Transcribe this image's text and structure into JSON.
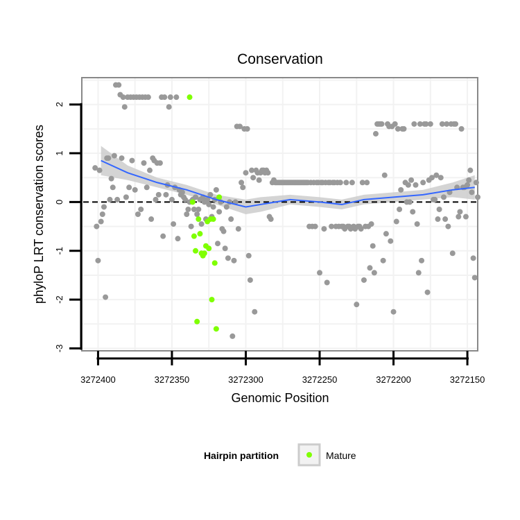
{
  "chart_data": {
    "type": "scatter",
    "title": "Conservation",
    "xlabel": "Genomic Position",
    "ylabel": "phyloP LRT conservation scores",
    "xlim": [
      3272411,
      3272143
    ],
    "ylim": [
      -3.05,
      2.55
    ],
    "x_ticks": [
      3272400,
      3272350,
      3272300,
      3272250,
      3272200,
      3272150
    ],
    "x_tick_labels": [
      "3272400",
      "3272350",
      "3272300",
      "3272250",
      "3272200",
      "3272150"
    ],
    "y_ticks": [
      2,
      1,
      0,
      -1,
      -2,
      -3
    ],
    "y_tick_labels": [
      "2",
      "1",
      "0",
      "-1",
      "-2",
      "-3"
    ],
    "grid": true,
    "reference_line": {
      "y": 0,
      "style": "dashed",
      "color": "#000000"
    },
    "colors": {
      "other_points": "#999999",
      "mature_points": "#7fff00",
      "smooth_line": "#3366ff",
      "ribbon": "#cccccc",
      "panel_border": "#888888",
      "grid": "#f2f2f2"
    },
    "legend": {
      "title": "Hairpin partition",
      "entries": [
        "Mature"
      ],
      "placement": "bottom"
    },
    "series": [
      {
        "name": "Other",
        "points": [
          [
            3272402,
            0.7
          ],
          [
            3272401,
            -0.5
          ],
          [
            3272400,
            -1.2
          ],
          [
            3272399,
            0.65
          ],
          [
            3272398,
            -0.4
          ],
          [
            3272397,
            -0.25
          ],
          [
            3272396,
            -0.1
          ],
          [
            3272395,
            -1.95
          ],
          [
            3272394,
            0.9
          ],
          [
            3272393,
            0.9
          ],
          [
            3272392,
            0.05
          ],
          [
            3272391,
            0.48
          ],
          [
            3272390,
            0.3
          ],
          [
            3272389,
            0.95
          ],
          [
            3272388,
            2.4
          ],
          [
            3272387,
            0.05
          ],
          [
            3272386,
            2.4
          ],
          [
            3272385,
            2.2
          ],
          [
            3272384,
            0.9
          ],
          [
            3272383,
            2.15
          ],
          [
            3272382,
            1.95
          ],
          [
            3272381,
            0.1
          ],
          [
            3272380,
            2.15
          ],
          [
            3272379,
            0.3
          ],
          [
            3272378,
            2.15
          ],
          [
            3272377,
            0.85
          ],
          [
            3272376,
            2.15
          ],
          [
            3272375,
            0.25
          ],
          [
            3272374,
            2.15
          ],
          [
            3272373,
            -0.25
          ],
          [
            3272372,
            2.15
          ],
          [
            3272371,
            -0.15
          ],
          [
            3272370,
            2.15
          ],
          [
            3272369,
            0.8
          ],
          [
            3272368,
            2.15
          ],
          [
            3272367,
            0.3
          ],
          [
            3272366,
            2.15
          ],
          [
            3272365,
            0.65
          ],
          [
            3272364,
            -0.35
          ],
          [
            3272363,
            0.9
          ],
          [
            3272362,
            0.85
          ],
          [
            3272361,
            0.05
          ],
          [
            3272360,
            0.8
          ],
          [
            3272359,
            0.15
          ],
          [
            3272358,
            0.8
          ],
          [
            3272357,
            2.15
          ],
          [
            3272356,
            -0.7
          ],
          [
            3272355,
            2.15
          ],
          [
            3272354,
            0.15
          ],
          [
            3272353,
            0.35
          ],
          [
            3272352,
            1.95
          ],
          [
            3272351,
            2.15
          ],
          [
            3272350,
            0.05
          ],
          [
            3272349,
            -0.45
          ],
          [
            3272348,
            0.3
          ],
          [
            3272347,
            2.15
          ],
          [
            3272346,
            -0.75
          ],
          [
            3272345,
            0.25
          ],
          [
            3272344,
            0.15
          ],
          [
            3272343,
            0.2
          ],
          [
            3272342,
            0.1
          ],
          [
            3272341,
            0.05
          ],
          [
            3272340,
            -0.25
          ],
          [
            3272339,
            -0.15
          ],
          [
            3272338,
            0.0
          ],
          [
            3272337,
            -0.5
          ],
          [
            3272336,
            0.05
          ],
          [
            3272335,
            -0.15
          ],
          [
            3272334,
            0.1
          ],
          [
            3272333,
            -0.25
          ],
          [
            3272332,
            -0.15
          ],
          [
            3272331,
            0.05
          ],
          [
            3272330,
            -0.45
          ],
          [
            3272329,
            0.1
          ],
          [
            3272328,
            0.0
          ],
          [
            3272327,
            -0.35
          ],
          [
            3272326,
            0.05
          ],
          [
            3272325,
            -0.05
          ],
          [
            3272324,
            0.15
          ],
          [
            3272323,
            -0.3
          ],
          [
            3272322,
            -0.1
          ],
          [
            3272321,
            0.05
          ],
          [
            3272320,
            0.25
          ],
          [
            3272319,
            -0.85
          ],
          [
            3272318,
            -0.2
          ],
          [
            3272317,
            0.0
          ],
          [
            3272316,
            -0.55
          ],
          [
            3272315,
            -0.6
          ],
          [
            3272314,
            -0.95
          ],
          [
            3272313,
            -0.1
          ],
          [
            3272312,
            -1.15
          ],
          [
            3272311,
            0.0
          ],
          [
            3272310,
            -0.35
          ],
          [
            3272309,
            -2.75
          ],
          [
            3272308,
            -1.2
          ],
          [
            3272307,
            0.0
          ],
          [
            3272306,
            1.55
          ],
          [
            3272305,
            -0.55
          ],
          [
            3272304,
            1.55
          ],
          [
            3272303,
            0.4
          ],
          [
            3272302,
            0.3
          ],
          [
            3272301,
            1.5
          ],
          [
            3272300,
            0.6
          ],
          [
            3272299,
            1.5
          ],
          [
            3272298,
            -1.1
          ],
          [
            3272297,
            -1.6
          ],
          [
            3272296,
            0.65
          ],
          [
            3272295,
            0.5
          ],
          [
            3272294,
            -2.25
          ],
          [
            3272293,
            0.65
          ],
          [
            3272292,
            0.6
          ],
          [
            3272291,
            0.45
          ],
          [
            3272290,
            0.6
          ],
          [
            3272289,
            0.65
          ],
          [
            3272288,
            0.65
          ],
          [
            3272287,
            0.6
          ],
          [
            3272286,
            0.65
          ],
          [
            3272285,
            0.6
          ],
          [
            3272284,
            -0.3
          ],
          [
            3272283,
            -0.35
          ],
          [
            3272282,
            0.4
          ],
          [
            3272281,
            0.45
          ],
          [
            3272280,
            0.4
          ],
          [
            3272279,
            0.4
          ],
          [
            3272278,
            0.4
          ],
          [
            3272277,
            0.4
          ],
          [
            3272276,
            0.4
          ],
          [
            3272275,
            0.4
          ],
          [
            3272274,
            0.4
          ],
          [
            3272273,
            0.4
          ],
          [
            3272272,
            0.4
          ],
          [
            3272271,
            0.4
          ],
          [
            3272270,
            0.4
          ],
          [
            3272269,
            0.4
          ],
          [
            3272268,
            0.4
          ],
          [
            3272267,
            0.4
          ],
          [
            3272266,
            0.4
          ],
          [
            3272265,
            0.4
          ],
          [
            3272264,
            0.4
          ],
          [
            3272263,
            0.4
          ],
          [
            3272262,
            0.4
          ],
          [
            3272261,
            0.4
          ],
          [
            3272260,
            0.4
          ],
          [
            3272259,
            0.4
          ],
          [
            3272258,
            0.4
          ],
          [
            3272257,
            -0.5
          ],
          [
            3272256,
            0.4
          ],
          [
            3272255,
            -0.5
          ],
          [
            3272254,
            0.4
          ],
          [
            3272253,
            -0.5
          ],
          [
            3272252,
            0.4
          ],
          [
            3272251,
            0.4
          ],
          [
            3272250,
            -1.45
          ],
          [
            3272249,
            0.4
          ],
          [
            3272248,
            0.4
          ],
          [
            3272247,
            -0.55
          ],
          [
            3272246,
            0.4
          ],
          [
            3272245,
            -1.65
          ],
          [
            3272244,
            0.4
          ],
          [
            3272243,
            0.4
          ],
          [
            3272242,
            -0.5
          ],
          [
            3272241,
            0.4
          ],
          [
            3272240,
            0.4
          ],
          [
            3272239,
            -0.5
          ],
          [
            3272238,
            0.4
          ],
          [
            3272237,
            -0.5
          ],
          [
            3272236,
            0.4
          ],
          [
            3272235,
            -0.5
          ],
          [
            3272234,
            -0.5
          ],
          [
            3272233,
            -0.55
          ],
          [
            3272232,
            0.4
          ],
          [
            3272231,
            -0.5
          ],
          [
            3272230,
            -0.5
          ],
          [
            3272229,
            -0.55
          ],
          [
            3272228,
            0.4
          ],
          [
            3272227,
            -0.5
          ],
          [
            3272226,
            -0.55
          ],
          [
            3272225,
            -2.1
          ],
          [
            3272224,
            -0.5
          ],
          [
            3272223,
            -0.5
          ],
          [
            3272222,
            -0.55
          ],
          [
            3272221,
            0.4
          ],
          [
            3272220,
            -1.6
          ],
          [
            3272219,
            -0.5
          ],
          [
            3272218,
            0.4
          ],
          [
            3272217,
            -0.5
          ],
          [
            3272216,
            -1.35
          ],
          [
            3272215,
            -0.45
          ],
          [
            3272214,
            -0.9
          ],
          [
            3272213,
            -1.45
          ],
          [
            3272212,
            1.4
          ],
          [
            3272211,
            1.6
          ],
          [
            3272210,
            1.6
          ],
          [
            3272209,
            1.6
          ],
          [
            3272208,
            1.6
          ],
          [
            3272207,
            -1.2
          ],
          [
            3272206,
            0.55
          ],
          [
            3272205,
            -0.65
          ],
          [
            3272204,
            1.6
          ],
          [
            3272203,
            1.55
          ],
          [
            3272202,
            -0.8
          ],
          [
            3272201,
            1.55
          ],
          [
            3272200,
            -2.25
          ],
          [
            3272199,
            1.6
          ],
          [
            3272198,
            -0.4
          ],
          [
            3272197,
            1.5
          ],
          [
            3272196,
            -0.15
          ],
          [
            3272195,
            0.25
          ],
          [
            3272194,
            1.5
          ],
          [
            3272193,
            1.5
          ],
          [
            3272192,
            0.4
          ],
          [
            3272191,
            0.0
          ],
          [
            3272190,
            0.35
          ],
          [
            3272189,
            0.0
          ],
          [
            3272188,
            0.45
          ],
          [
            3272187,
            -0.2
          ],
          [
            3272186,
            1.6
          ],
          [
            3272185,
            0.35
          ],
          [
            3272184,
            -0.45
          ],
          [
            3272183,
            -1.45
          ],
          [
            3272182,
            1.6
          ],
          [
            3272181,
            -1.2
          ],
          [
            3272180,
            0.4
          ],
          [
            3272179,
            1.6
          ],
          [
            3272178,
            1.6
          ],
          [
            3272177,
            -1.85
          ],
          [
            3272176,
            0.45
          ],
          [
            3272175,
            1.6
          ],
          [
            3272174,
            0.5
          ],
          [
            3272173,
            0.05
          ],
          [
            3272172,
            0.05
          ],
          [
            3272171,
            0.55
          ],
          [
            3272170,
            -0.35
          ],
          [
            3272169,
            -0.15
          ],
          [
            3272168,
            0.5
          ],
          [
            3272167,
            1.6
          ],
          [
            3272166,
            0.1
          ],
          [
            3272165,
            -0.35
          ],
          [
            3272164,
            1.6
          ],
          [
            3272163,
            -0.5
          ],
          [
            3272162,
            0.2
          ],
          [
            3272161,
            1.6
          ],
          [
            3272160,
            -1.05
          ],
          [
            3272159,
            1.6
          ],
          [
            3272158,
            1.6
          ],
          [
            3272157,
            0.3
          ],
          [
            3272156,
            -0.3
          ],
          [
            3272155,
            -0.2
          ],
          [
            3272154,
            1.5
          ],
          [
            3272153,
            0.3
          ],
          [
            3272152,
            0.3
          ],
          [
            3272151,
            -0.3
          ],
          [
            3272150,
            0.35
          ],
          [
            3272149,
            0.45
          ],
          [
            3272148,
            0.65
          ],
          [
            3272147,
            0.2
          ],
          [
            3272146,
            -1.15
          ],
          [
            3272145,
            -1.55
          ],
          [
            3272144,
            0.4
          ],
          [
            3272143,
            0.1
          ]
        ]
      },
      {
        "name": "Mature",
        "points": [
          [
            3272338,
            2.15
          ],
          [
            3272336,
            0.0
          ],
          [
            3272335,
            -0.7
          ],
          [
            3272334,
            -1.0
          ],
          [
            3272333,
            -2.45
          ],
          [
            3272332,
            -0.35
          ],
          [
            3272331,
            -0.65
          ],
          [
            3272330,
            -1.05
          ],
          [
            3272329,
            -1.1
          ],
          [
            3272328,
            -1.05
          ],
          [
            3272327,
            -0.9
          ],
          [
            3272326,
            -0.4
          ],
          [
            3272325,
            -0.95
          ],
          [
            3272324,
            -0.35
          ],
          [
            3272323,
            -2.0
          ],
          [
            3272322,
            -0.35
          ],
          [
            3272321,
            -1.25
          ],
          [
            3272320,
            -2.6
          ],
          [
            3272318,
            0.1
          ]
        ]
      }
    ],
    "smooth": {
      "x": [
        3272398,
        3272380,
        3272360,
        3272340,
        3272320,
        3272300,
        3272290,
        3272270,
        3272250,
        3272235,
        3272220,
        3272200,
        3272180,
        3272160,
        3272145
      ],
      "y": [
        0.85,
        0.6,
        0.4,
        0.25,
        0.05,
        -0.1,
        -0.05,
        0.05,
        0.0,
        -0.05,
        0.05,
        0.1,
        0.15,
        0.25,
        0.3
      ],
      "lower": [
        0.55,
        0.45,
        0.3,
        0.15,
        -0.05,
        -0.25,
        -0.2,
        -0.05,
        -0.1,
        -0.15,
        -0.05,
        0.0,
        0.05,
        0.1,
        0.05
      ],
      "upper": [
        1.15,
        0.75,
        0.5,
        0.35,
        0.15,
        0.05,
        0.1,
        0.15,
        0.1,
        0.05,
        0.15,
        0.2,
        0.25,
        0.4,
        0.55
      ]
    }
  }
}
